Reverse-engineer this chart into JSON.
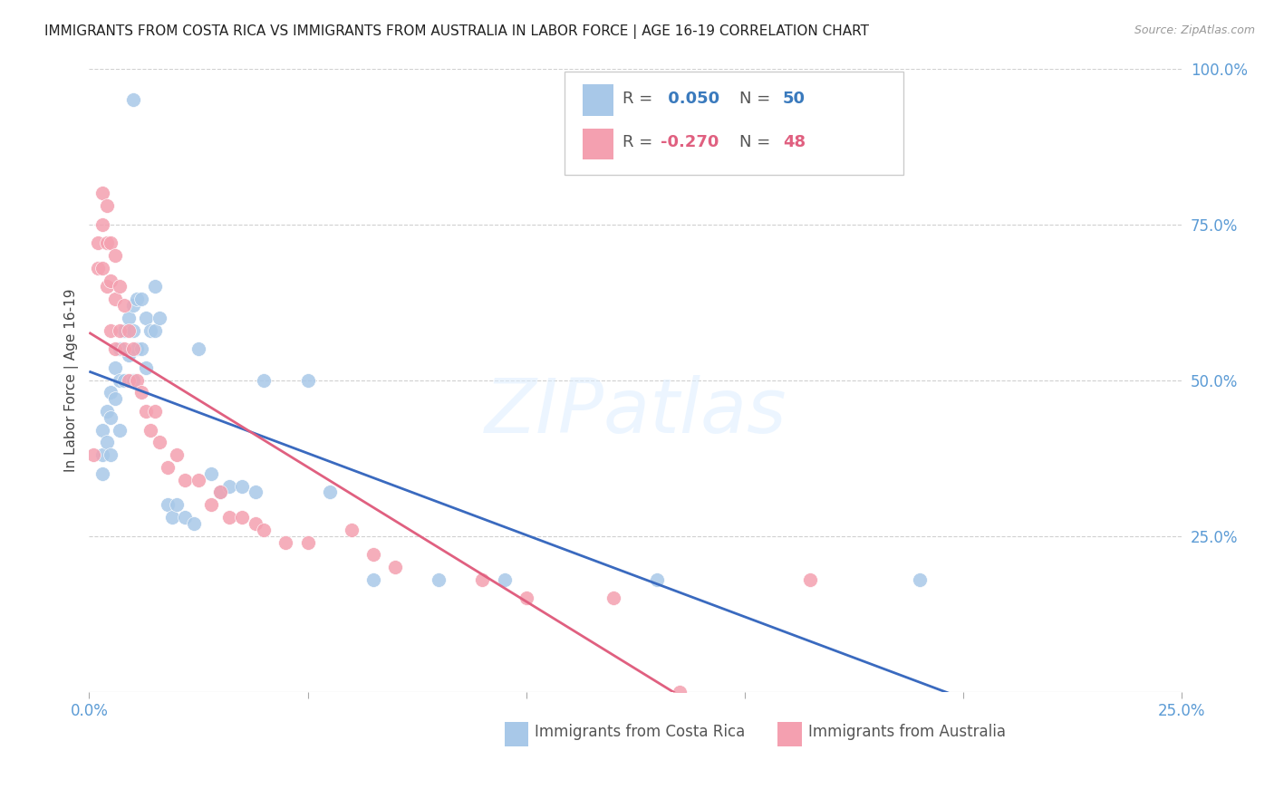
{
  "title": "IMMIGRANTS FROM COSTA RICA VS IMMIGRANTS FROM AUSTRALIA IN LABOR FORCE | AGE 16-19 CORRELATION CHART",
  "source": "Source: ZipAtlas.com",
  "ylabel": "In Labor Force | Age 16-19",
  "xlim": [
    0.0,
    0.25
  ],
  "ylim": [
    0.0,
    1.0
  ],
  "yticks": [
    0.0,
    0.25,
    0.5,
    0.75,
    1.0
  ],
  "ytick_labels": [
    "",
    "25.0%",
    "50.0%",
    "75.0%",
    "100.0%"
  ],
  "xticks": [
    0.0,
    0.05,
    0.1,
    0.15,
    0.2,
    0.25
  ],
  "xtick_labels": [
    "0.0%",
    "",
    "",
    "",
    "",
    "25.0%"
  ],
  "costa_rica_R": 0.05,
  "costa_rica_N": 50,
  "australia_R": -0.27,
  "australia_N": 48,
  "blue_color": "#a8c8e8",
  "pink_color": "#f4a0b0",
  "blue_line_color": "#3a6abf",
  "pink_line_color": "#e06080",
  "costa_rica_x": [
    0.003,
    0.003,
    0.003,
    0.004,
    0.004,
    0.005,
    0.005,
    0.005,
    0.006,
    0.006,
    0.007,
    0.007,
    0.007,
    0.008,
    0.008,
    0.009,
    0.009,
    0.01,
    0.01,
    0.01,
    0.011,
    0.011,
    0.012,
    0.012,
    0.013,
    0.013,
    0.014,
    0.015,
    0.015,
    0.016,
    0.018,
    0.019,
    0.02,
    0.022,
    0.024,
    0.025,
    0.028,
    0.03,
    0.032,
    0.035,
    0.038,
    0.04,
    0.05,
    0.055,
    0.065,
    0.08,
    0.095,
    0.13,
    0.19,
    0.01
  ],
  "costa_rica_y": [
    0.42,
    0.38,
    0.35,
    0.45,
    0.4,
    0.48,
    0.44,
    0.38,
    0.52,
    0.47,
    0.55,
    0.5,
    0.42,
    0.58,
    0.5,
    0.6,
    0.54,
    0.62,
    0.58,
    0.5,
    0.63,
    0.55,
    0.63,
    0.55,
    0.6,
    0.52,
    0.58,
    0.65,
    0.58,
    0.6,
    0.3,
    0.28,
    0.3,
    0.28,
    0.27,
    0.55,
    0.35,
    0.32,
    0.33,
    0.33,
    0.32,
    0.5,
    0.5,
    0.32,
    0.18,
    0.18,
    0.18,
    0.18,
    0.18,
    0.95
  ],
  "australia_x": [
    0.001,
    0.002,
    0.002,
    0.003,
    0.003,
    0.003,
    0.004,
    0.004,
    0.004,
    0.005,
    0.005,
    0.005,
    0.006,
    0.006,
    0.006,
    0.007,
    0.007,
    0.008,
    0.008,
    0.009,
    0.009,
    0.01,
    0.011,
    0.012,
    0.013,
    0.014,
    0.015,
    0.016,
    0.018,
    0.02,
    0.022,
    0.025,
    0.028,
    0.03,
    0.032,
    0.035,
    0.038,
    0.04,
    0.045,
    0.05,
    0.06,
    0.065,
    0.07,
    0.09,
    0.1,
    0.12,
    0.135,
    0.165
  ],
  "australia_y": [
    0.38,
    0.72,
    0.68,
    0.8,
    0.75,
    0.68,
    0.78,
    0.72,
    0.65,
    0.72,
    0.66,
    0.58,
    0.7,
    0.63,
    0.55,
    0.65,
    0.58,
    0.62,
    0.55,
    0.58,
    0.5,
    0.55,
    0.5,
    0.48,
    0.45,
    0.42,
    0.45,
    0.4,
    0.36,
    0.38,
    0.34,
    0.34,
    0.3,
    0.32,
    0.28,
    0.28,
    0.27,
    0.26,
    0.24,
    0.24,
    0.26,
    0.22,
    0.2,
    0.18,
    0.15,
    0.15,
    0.0,
    0.18
  ]
}
